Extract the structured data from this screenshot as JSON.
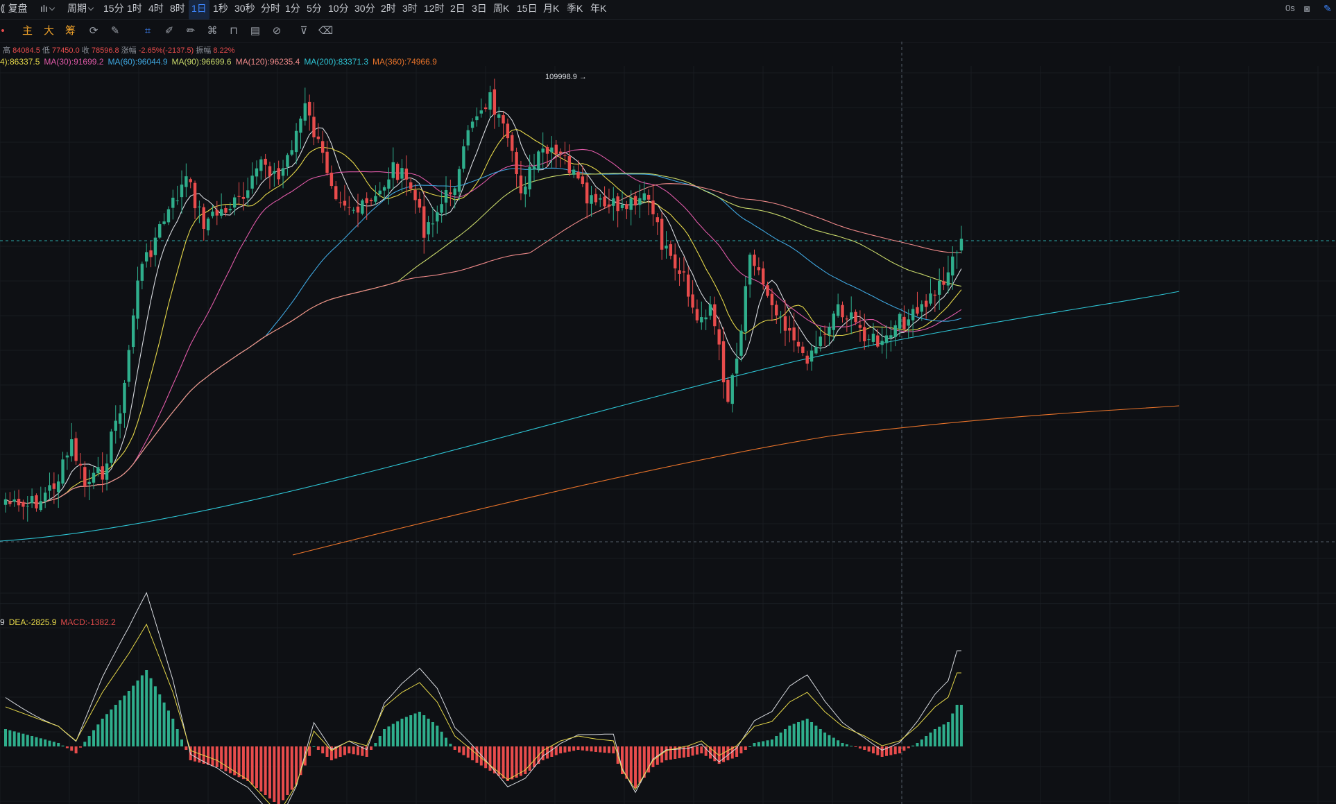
{
  "toolbar": {
    "replay_label": "复盘",
    "period_label": "周期",
    "intervals": [
      "15分",
      "1时",
      "4时",
      "8时",
      "1日",
      "1秒",
      "30秒",
      "分时",
      "1分",
      "5分",
      "10分",
      "30分",
      "2时",
      "3时",
      "12时",
      "2日",
      "3日",
      "周K",
      "15日",
      "月K",
      "季K",
      "年K"
    ],
    "active_interval": "1日",
    "right_time": "0s"
  },
  "drawbar": {
    "main_label": "主",
    "big_label": "大",
    "chip_label": "筹"
  },
  "ohlc": {
    "high_label": "高",
    "high": "84084.5",
    "low_label": "低",
    "low": "77450.0",
    "close_label": "收",
    "close": "78596.8",
    "change_label": "涨幅",
    "change": "-2.65%(-2137.5)",
    "amplitude_label": "振幅",
    "amplitude": "8.22%"
  },
  "ma_legend": [
    {
      "text": "4):86337.5",
      "color": "#e6d84a"
    },
    {
      "text": "MA(30):91699.2",
      "color": "#e05aa8"
    },
    {
      "text": "MA(60):96044.9",
      "color": "#3fa7e0"
    },
    {
      "text": "MA(90):96699.6",
      "color": "#c8d86a"
    },
    {
      "text": "MA(120):96235.4",
      "color": "#f08a8a"
    },
    {
      "text": "MA(200):83371.3",
      "color": "#2ec6d6"
    },
    {
      "text": "MA(360):74966.9",
      "color": "#e8732a"
    }
  ],
  "macd_legend": [
    {
      "text": "9",
      "color": "#d8dbe0"
    },
    {
      "text": "DEA:-2825.9",
      "color": "#e6d84a"
    },
    {
      "text": "MACD:-1382.2",
      "color": "#e04a4a"
    }
  ],
  "chart_data": {
    "type": "candlestick",
    "peak_label": "109998.9",
    "colors": {
      "up": "#2fae8c",
      "down": "#e84c4c",
      "background": "#0e1014"
    },
    "grid": true
  }
}
